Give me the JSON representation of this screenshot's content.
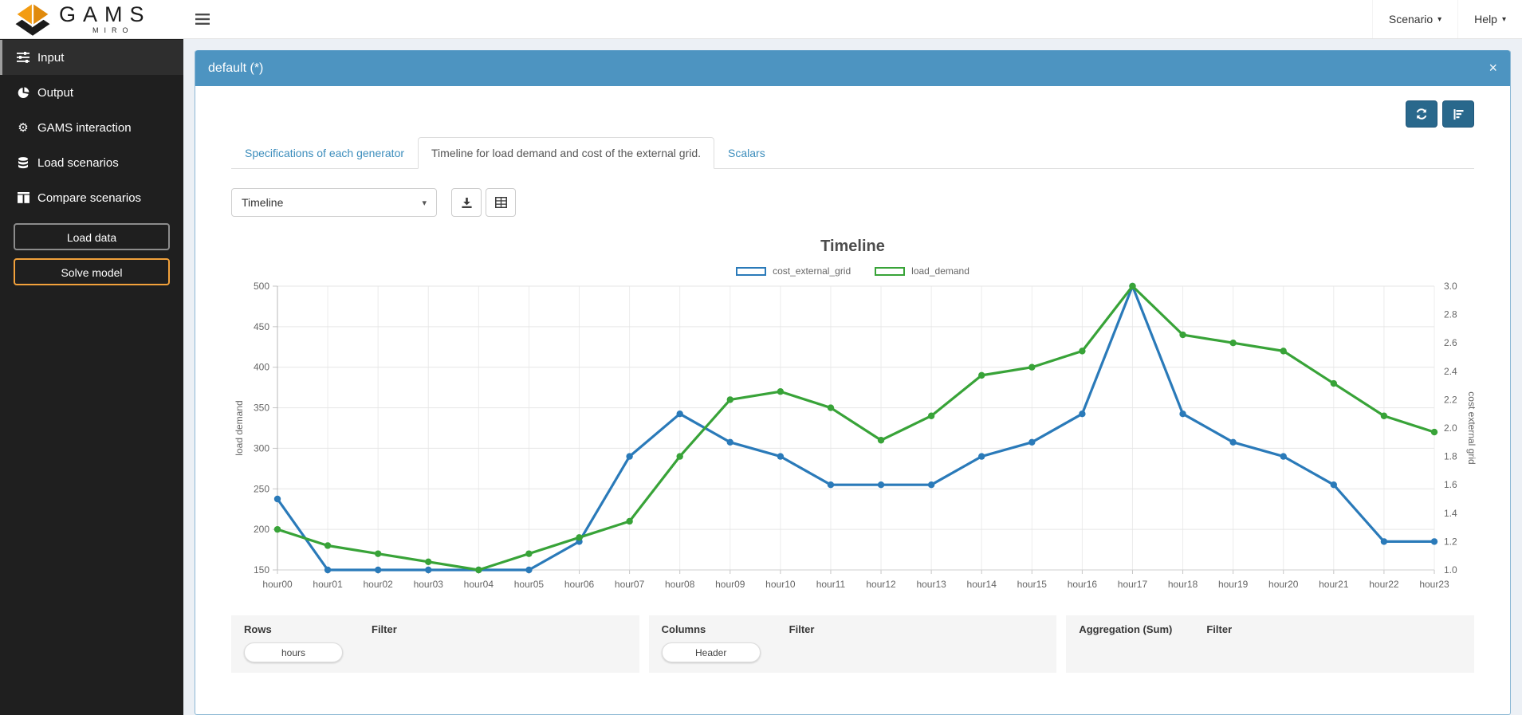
{
  "topbar": {
    "brand": {
      "gams": "GAMS",
      "miro": "MIRO"
    },
    "menus": [
      {
        "label": "Scenario"
      },
      {
        "label": "Help"
      }
    ]
  },
  "sidebar": {
    "items": [
      {
        "label": "Input",
        "icon": "sliders-icon",
        "active": true
      },
      {
        "label": "Output",
        "icon": "pie-chart-icon",
        "active": false
      },
      {
        "label": "GAMS interaction",
        "icon": "gear-icon",
        "active": false
      },
      {
        "label": "Load scenarios",
        "icon": "database-icon",
        "active": false
      },
      {
        "label": "Compare scenarios",
        "icon": "columns-icon",
        "active": false
      }
    ],
    "buttons": [
      {
        "label": "Load data"
      },
      {
        "label": "Solve model"
      }
    ]
  },
  "panel": {
    "title": "default (*)",
    "close_label": "×"
  },
  "tabs": [
    {
      "label": "Specifications of each generator",
      "active": false
    },
    {
      "label": "Timeline for load demand and cost of the external grid.",
      "active": true
    },
    {
      "label": "Scalars",
      "active": false
    }
  ],
  "controls": {
    "view_select_value": "Timeline",
    "caret": "▾",
    "icons": {
      "refresh": "refresh-icon",
      "chart": "bar-chart-icon",
      "download": "download-icon",
      "table": "table-icon"
    }
  },
  "chart_data": {
    "type": "line",
    "title": "Timeline",
    "categories": [
      "hour00",
      "hour01",
      "hour02",
      "hour03",
      "hour04",
      "hour05",
      "hour06",
      "hour07",
      "hour08",
      "hour09",
      "hour10",
      "hour11",
      "hour12",
      "hour13",
      "hour14",
      "hour15",
      "hour16",
      "hour17",
      "hour18",
      "hour19",
      "hour20",
      "hour21",
      "hour22",
      "hour23"
    ],
    "series": [
      {
        "name": "cost_external_grid",
        "axis": "right",
        "color": "#2a7ab9",
        "values": [
          1.5,
          1.0,
          1.0,
          1.0,
          1.0,
          1.0,
          1.2,
          1.8,
          2.1,
          1.9,
          1.8,
          1.6,
          1.6,
          1.6,
          1.8,
          1.9,
          2.1,
          3.0,
          2.1,
          1.9,
          1.8,
          1.6,
          1.2,
          1.2
        ]
      },
      {
        "name": "load_demand",
        "axis": "left",
        "color": "#38a338",
        "values": [
          200,
          180,
          170,
          160,
          150,
          170,
          190,
          210,
          290,
          360,
          370,
          350,
          310,
          340,
          390,
          400,
          420,
          500,
          440,
          430,
          420,
          380,
          340,
          320
        ]
      }
    ],
    "axes": {
      "left": {
        "label": "load demand",
        "min": 150,
        "max": 500,
        "step": 50
      },
      "right": {
        "label": "cost external grid",
        "min": 1.0,
        "max": 3.0,
        "step": 0.2
      }
    },
    "legend_position": "top-center",
    "grid": true
  },
  "pivot": {
    "panels": [
      {
        "title": "Rows",
        "filter_label": "Filter",
        "pills": [
          "hours"
        ]
      },
      {
        "title": "Columns",
        "filter_label": "Filter",
        "pills": [
          "Header"
        ]
      },
      {
        "title": "Aggregation (Sum)",
        "filter_label": "Filter",
        "pills": []
      }
    ]
  },
  "colors": {
    "header_blue": "#4d94c1",
    "dark_button_blue": "#29688c",
    "tab_link_blue": "#3c8dbc",
    "solve_border_orange": "#f2a13b",
    "series_blue": "#2a7ab9",
    "series_green": "#38a338",
    "logo_orange": "#f39c12",
    "logo_black": "#1b1b1b"
  }
}
